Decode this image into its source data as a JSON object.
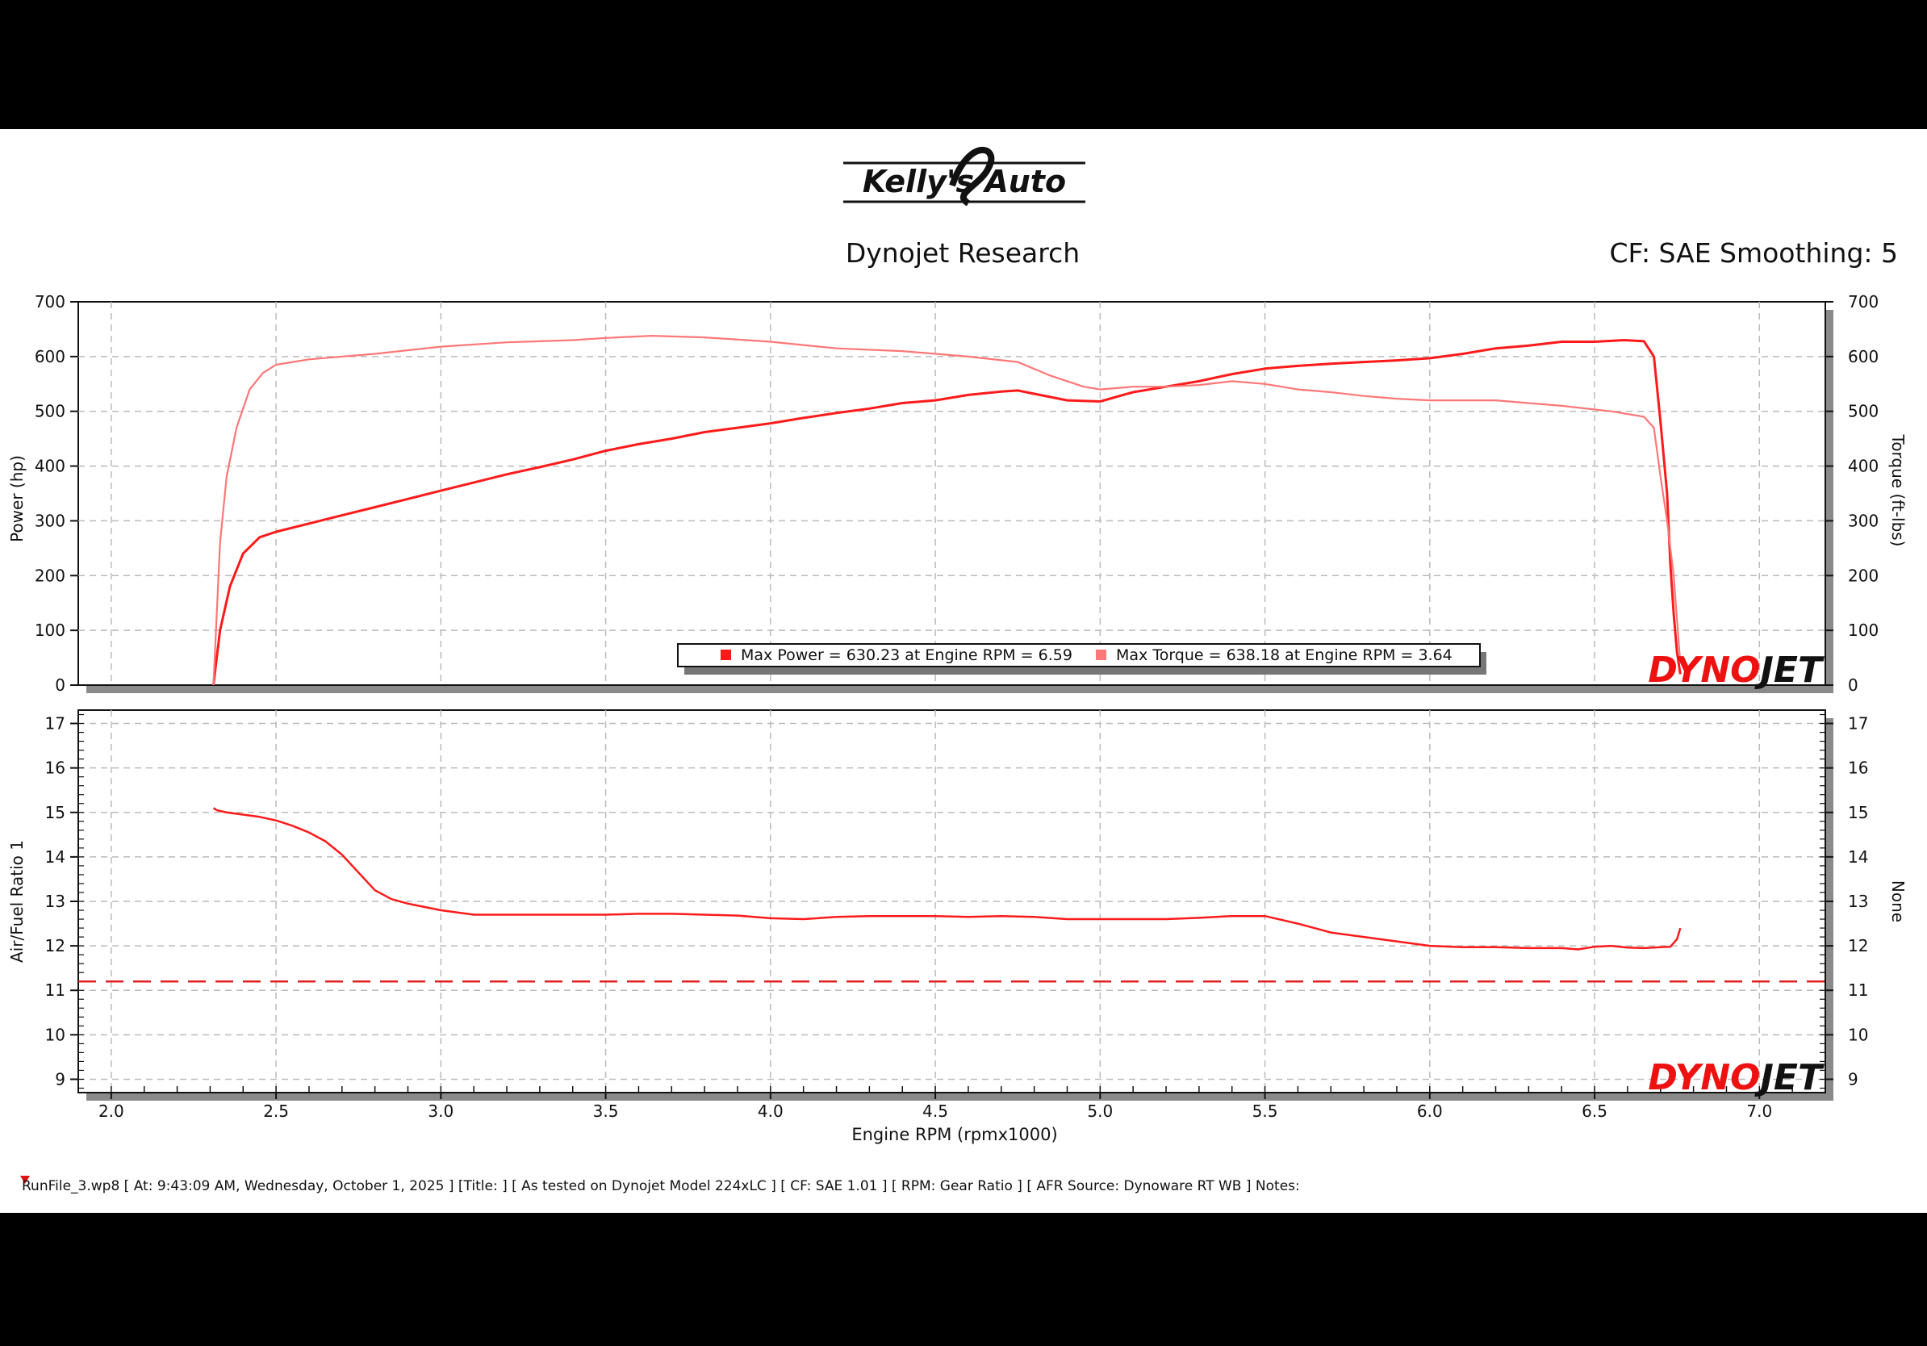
{
  "header": {
    "logo_text": "Kelly's Auto",
    "title": "Dynojet Research",
    "settings": "CF: SAE Smoothing: 5"
  },
  "watermark": "DYNOJET",
  "legend": {
    "power": "Max Power = 630.23 at Engine RPM = 6.59",
    "torque": "Max Torque = 638.18 at Engine RPM = 3.64"
  },
  "footer": {
    "run_info": "RunFile_3.wp8 [ At:  9:43:09 AM, Wednesday, October 1, 2025 ] [Title:  ]   [ As tested on Dynojet Model 224xLC ] [ CF:  SAE 1.01 ] [ RPM:  Gear Ratio ] [ AFR Source:  Dynoware RT WB ] Notes:"
  },
  "colors": {
    "power": "#ff1a1a",
    "torque": "#ff7777",
    "afr": "#ff1a1a",
    "target": "#e02020",
    "grid": "#bbbbbb",
    "watermark_red": "#ee1111",
    "watermark_black": "#111111"
  },
  "chart_data": [
    {
      "type": "line",
      "xlabel": "Engine RPM (rpmx1000)",
      "ylabel": "Power (hp)",
      "y2label": "Torque (ft-lbs)",
      "xlim": [
        1.9,
        7.2
      ],
      "ylim": [
        0,
        700
      ],
      "y2lim": [
        0,
        700
      ],
      "x_ticks": [
        2.0,
        2.5,
        3.0,
        3.5,
        4.0,
        4.5,
        5.0,
        5.5,
        6.0,
        6.5,
        7.0
      ],
      "x_tick_labels": [
        "2.0",
        "2.5",
        "3.0",
        "3.5",
        "4.0",
        "4.5",
        "5.0",
        "5.5",
        "6.0",
        "6.5",
        "7.0"
      ],
      "y_ticks": [
        0,
        100,
        200,
        300,
        400,
        500,
        600,
        700
      ],
      "y_tick_labels": [
        "0",
        "100",
        "200",
        "300",
        "400",
        "500",
        "600",
        "700"
      ],
      "y2_tick_labels": [
        "0",
        "100",
        "200",
        "300",
        "400",
        "500",
        "600",
        "700"
      ],
      "grid": true,
      "series": [
        {
          "name": "Max Power = 630.23 at Engine RPM = 6.59",
          "x": [
            2.31,
            2.33,
            2.36,
            2.4,
            2.45,
            2.5,
            2.6,
            2.7,
            2.8,
            2.9,
            3.0,
            3.1,
            3.2,
            3.3,
            3.4,
            3.5,
            3.6,
            3.7,
            3.8,
            3.9,
            4.0,
            4.1,
            4.2,
            4.3,
            4.4,
            4.5,
            4.6,
            4.7,
            4.75,
            4.8,
            4.9,
            5.0,
            5.1,
            5.2,
            5.3,
            5.4,
            5.5,
            5.6,
            5.7,
            5.8,
            5.9,
            6.0,
            6.1,
            6.2,
            6.3,
            6.4,
            6.5,
            6.59,
            6.65,
            6.68,
            6.7,
            6.72,
            6.73,
            6.74,
            6.75,
            6.76
          ],
          "values": [
            0,
            100,
            180,
            240,
            270,
            280,
            295,
            310,
            325,
            340,
            355,
            370,
            385,
            398,
            412,
            428,
            440,
            450,
            462,
            470,
            478,
            488,
            497,
            505,
            515,
            520,
            530,
            536,
            538,
            532,
            520,
            518,
            535,
            545,
            555,
            568,
            578,
            583,
            587,
            590,
            593,
            597,
            605,
            615,
            620,
            627,
            627,
            630,
            628,
            600,
            480,
            350,
            220,
            130,
            60,
            20
          ]
        },
        {
          "name": "Max Torque = 638.18 at Engine RPM = 3.64",
          "x": [
            2.31,
            2.33,
            2.35,
            2.38,
            2.42,
            2.46,
            2.5,
            2.6,
            2.8,
            3.0,
            3.2,
            3.4,
            3.5,
            3.64,
            3.8,
            4.0,
            4.2,
            4.4,
            4.6,
            4.75,
            4.85,
            4.95,
            5.0,
            5.1,
            5.2,
            5.3,
            5.4,
            5.5,
            5.6,
            5.7,
            5.8,
            5.9,
            6.0,
            6.2,
            6.4,
            6.55,
            6.65,
            6.68,
            6.7,
            6.72,
            6.74,
            6.75,
            6.76
          ],
          "values": [
            0,
            260,
            380,
            470,
            540,
            570,
            585,
            595,
            605,
            618,
            626,
            630,
            634,
            638,
            635,
            627,
            615,
            610,
            600,
            590,
            565,
            545,
            540,
            545,
            545,
            548,
            555,
            550,
            540,
            535,
            528,
            523,
            520,
            520,
            510,
            500,
            490,
            470,
            380,
            300,
            200,
            120,
            40
          ]
        }
      ]
    },
    {
      "type": "line",
      "xlabel": "Engine RPM (rpmx1000)",
      "ylabel": "Air/Fuel Ratio 1",
      "y2label": "None",
      "xlim": [
        1.9,
        7.2
      ],
      "ylim": [
        8.7,
        17.3
      ],
      "y_ticks": [
        9,
        10,
        11,
        12,
        13,
        14,
        15,
        16,
        17
      ],
      "y_tick_labels": [
        "9",
        "10",
        "11",
        "12",
        "13",
        "14",
        "15",
        "16",
        "17"
      ],
      "y2_tick_labels": [
        "9",
        "10",
        "11",
        "12",
        "13",
        "14",
        "15",
        "16",
        "17"
      ],
      "grid": true,
      "series": [
        {
          "name": "Air/Fuel Ratio 1",
          "x": [
            2.31,
            2.32,
            2.35,
            2.4,
            2.45,
            2.5,
            2.55,
            2.6,
            2.65,
            2.7,
            2.75,
            2.8,
            2.85,
            2.9,
            3.0,
            3.1,
            3.2,
            3.3,
            3.4,
            3.5,
            3.6,
            3.7,
            3.8,
            3.9,
            4.0,
            4.1,
            4.2,
            4.3,
            4.4,
            4.5,
            4.6,
            4.7,
            4.8,
            4.9,
            5.0,
            5.1,
            5.2,
            5.3,
            5.4,
            5.5,
            5.6,
            5.7,
            5.8,
            5.9,
            6.0,
            6.1,
            6.2,
            6.3,
            6.4,
            6.45,
            6.5,
            6.55,
            6.6,
            6.65,
            6.7,
            6.73,
            6.75,
            6.76
          ],
          "values": [
            15.1,
            15.05,
            15.0,
            14.95,
            14.9,
            14.82,
            14.7,
            14.55,
            14.35,
            14.05,
            13.65,
            13.25,
            13.05,
            12.95,
            12.8,
            12.7,
            12.7,
            12.7,
            12.7,
            12.7,
            12.72,
            12.72,
            12.7,
            12.68,
            12.62,
            12.6,
            12.65,
            12.67,
            12.67,
            12.67,
            12.65,
            12.67,
            12.65,
            12.6,
            12.6,
            12.6,
            12.6,
            12.63,
            12.67,
            12.67,
            12.5,
            12.3,
            12.2,
            12.1,
            12.0,
            11.97,
            11.97,
            11.95,
            11.95,
            11.92,
            11.98,
            12.0,
            11.96,
            11.95,
            11.97,
            11.98,
            12.15,
            12.4
          ]
        },
        {
          "name": "Reference",
          "style": "dashed",
          "x": [
            1.9,
            7.2
          ],
          "values": [
            11.2,
            11.2
          ]
        }
      ]
    }
  ]
}
